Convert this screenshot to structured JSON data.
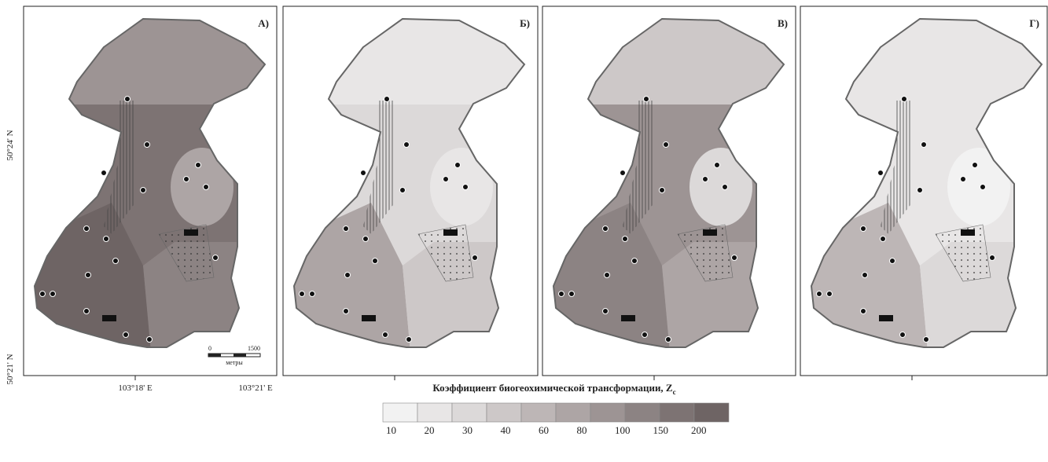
{
  "panels": [
    {
      "label": "А)"
    },
    {
      "label": "Б)"
    },
    {
      "label": "В)"
    },
    {
      "label": "Г)"
    }
  ],
  "axes": {
    "lat_top": "50°24' N",
    "lat_bottom": "50°21' N",
    "lon_left": "103°18' E",
    "lon_right": "103°21' E"
  },
  "scale_bar": {
    "start": "0",
    "end": "1500",
    "unit": "метры"
  },
  "legend": {
    "title": "Коэффициент биогеохимической трансформации, Z",
    "subscript": "c",
    "ticks": [
      10,
      20,
      30,
      40,
      60,
      80,
      100,
      150,
      200
    ],
    "colors": [
      "#f2f2f2",
      "#e8e6e6",
      "#dcd9d9",
      "#cdc8c8",
      "#bdb6b6",
      "#ada5a5",
      "#9d9494",
      "#8c8383",
      "#7d7373",
      "#6e6464"
    ]
  }
}
